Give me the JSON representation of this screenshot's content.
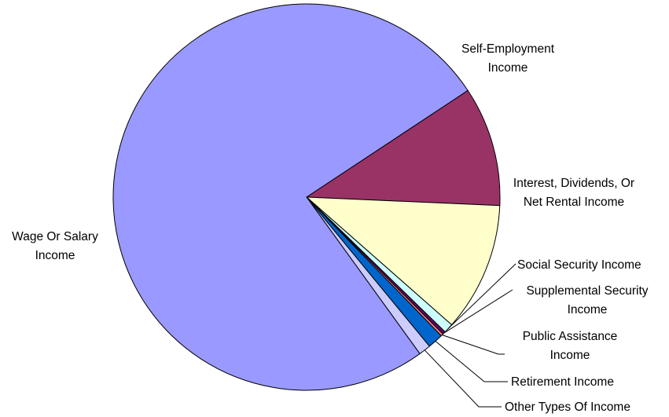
{
  "chart_data": {
    "type": "pie",
    "title": "",
    "legend": "none",
    "slices": [
      {
        "label": "Self-Employment Income",
        "value": 10.0,
        "color": "#993366"
      },
      {
        "label": "Interest, Dividends, Or Net Rental Income",
        "value": 10.8,
        "color": "#FFFFCC"
      },
      {
        "label": "Social Security Income",
        "value": 0.8,
        "color": "#CCFFFF"
      },
      {
        "label": "Supplemental Security Income",
        "value": 0.25,
        "color": "#660066"
      },
      {
        "label": "Public Assistance Income",
        "value": 0.2,
        "color": "#FF8080"
      },
      {
        "label": "Retirement Income",
        "value": 1.3,
        "color": "#0066CC"
      },
      {
        "label": "Other Types Of Income",
        "value": 1.0,
        "color": "#CCCCFF"
      },
      {
        "label": "Wage Or Salary Income",
        "value": 75.65,
        "color": "#9999FF"
      }
    ]
  }
}
